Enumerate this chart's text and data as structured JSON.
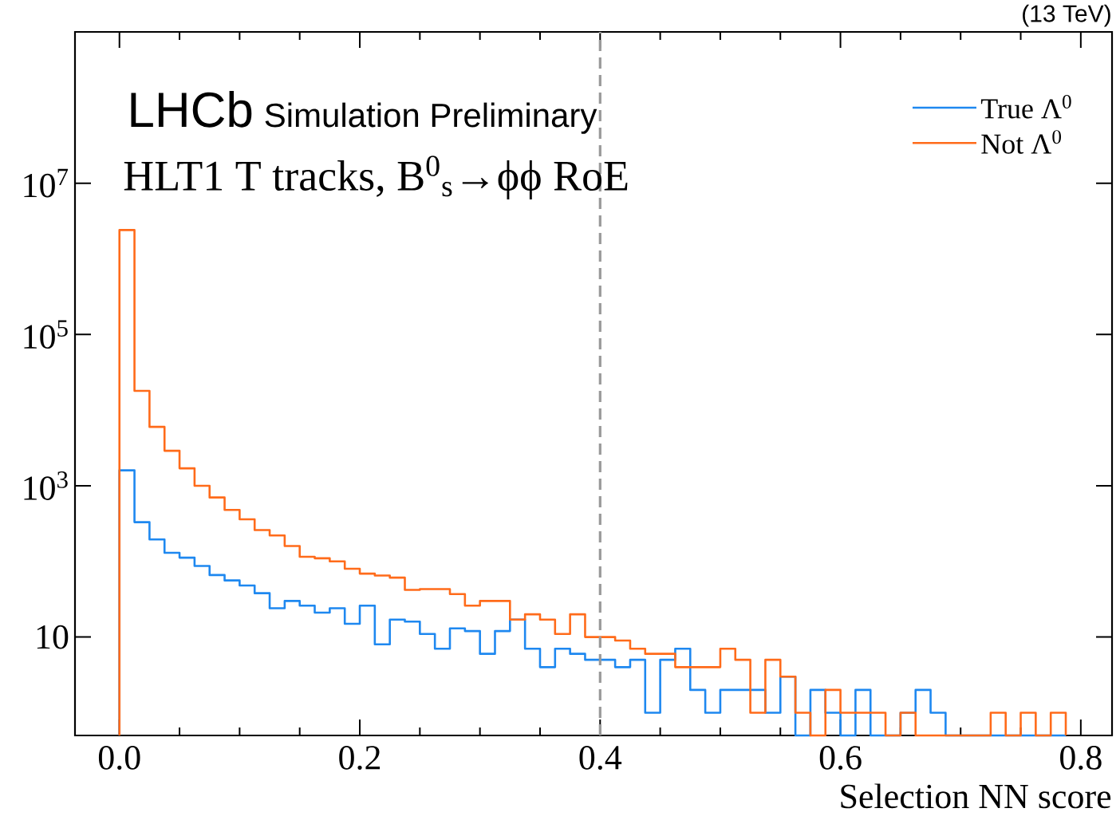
{
  "chart_data": {
    "type": "histogram",
    "title": "LHCb",
    "subtitle": "Simulation Preliminary",
    "xlabel": "Selection NN score",
    "annotations": [
      "HLT1 T tracks, B$^{0}$$_{s}$→ϕϕ RoE",
      "(13 TeV)"
    ],
    "bins": [
      0,
      0.0125,
      0.025,
      0.0375,
      0.05,
      0.0625,
      0.075,
      0.0875,
      0.1,
      0.1125,
      0.125,
      0.1375,
      0.15,
      0.1625,
      0.175,
      0.1875,
      0.2,
      0.2125,
      0.225,
      0.2375,
      0.25,
      0.2625,
      0.275,
      0.2875,
      0.3,
      0.3125,
      0.325,
      0.3375,
      0.35,
      0.3625,
      0.375,
      0.3875,
      0.4,
      0.4125,
      0.425,
      0.4375,
      0.45,
      0.4625,
      0.475,
      0.4875,
      0.5,
      0.5125,
      0.525,
      0.5375,
      0.55,
      0.5625,
      0.575,
      0.5875,
      0.6,
      0.6125,
      0.625,
      0.6375,
      0.65,
      0.6625,
      0.675,
      0.6875,
      0.7,
      0.7125,
      0.725,
      0.7375,
      0.75,
      0.7625,
      0.775,
      0.7875
    ],
    "series": [
      {
        "name": "True Λ$^{0}$",
        "color": "#1e88f0",
        "values": [
          1600,
          330,
          195,
          130,
          112,
          87,
          66,
          56,
          48,
          38,
          24,
          30,
          26,
          21,
          24,
          15,
          26,
          8,
          17,
          16,
          11,
          7,
          13,
          12,
          6,
          12,
          17,
          7,
          4,
          7,
          6,
          5,
          5,
          4,
          5,
          1,
          5,
          7,
          2,
          1,
          2,
          2,
          2,
          1,
          3,
          null,
          2,
          1,
          null,
          2,
          null,
          null,
          1,
          2,
          1,
          null,
          null,
          null,
          null,
          null,
          null,
          null,
          null
        ]
      },
      {
        "name": "Not Λ$^{0}$",
        "color": "#ff6b1a",
        "values": [
          2400000,
          18000,
          6000,
          2900,
          1700,
          1000,
          700,
          480,
          360,
          260,
          220,
          160,
          115,
          110,
          100,
          80,
          69,
          65,
          61,
          42,
          43,
          43,
          37,
          26,
          30,
          30,
          17,
          20,
          17,
          11,
          20,
          10,
          10,
          9,
          7,
          6,
          6,
          4,
          4,
          4,
          7,
          5,
          1,
          5,
          3,
          1,
          null,
          2,
          1,
          1,
          1,
          null,
          1,
          null,
          null,
          null,
          null,
          null,
          1,
          null,
          1,
          null,
          1
        ]
      }
    ],
    "log": "y",
    "xlim": [
      -0.037,
      0.826
    ],
    "ylim": [
      0.5,
      1000000000
    ],
    "xticks": [
      {
        "value": 0,
        "label": "0.0"
      },
      {
        "value": 0.05,
        "label": null
      },
      {
        "value": 0.1,
        "label": null
      },
      {
        "value": 0.15,
        "label": null
      },
      {
        "value": 0.2,
        "label": "0.2"
      },
      {
        "value": 0.25,
        "label": null
      },
      {
        "value": 0.3,
        "label": null
      },
      {
        "value": 0.35,
        "label": null
      },
      {
        "value": 0.4,
        "label": "0.4"
      },
      {
        "value": 0.45,
        "label": null
      },
      {
        "value": 0.5,
        "label": null
      },
      {
        "value": 0.55,
        "label": null
      },
      {
        "value": 0.6,
        "label": "0.6"
      },
      {
        "value": 0.65,
        "label": null
      },
      {
        "value": 0.7,
        "label": null
      },
      {
        "value": 0.75,
        "label": null
      },
      {
        "value": 0.8,
        "label": "0.8"
      }
    ],
    "yticks": [
      10,
      {
        "value": 1000,
        "label": "10$^{3}$"
      },
      {
        "value": 100000,
        "label": "10$^{5}$"
      },
      {
        "value": 10000000,
        "label": "10$^{7}$"
      }
    ],
    "ref_lines": [
      {
        "axis": "x",
        "value": 0.4,
        "color": "#999999",
        "line_style": "dashed"
      }
    ],
    "legend": "top right"
  }
}
